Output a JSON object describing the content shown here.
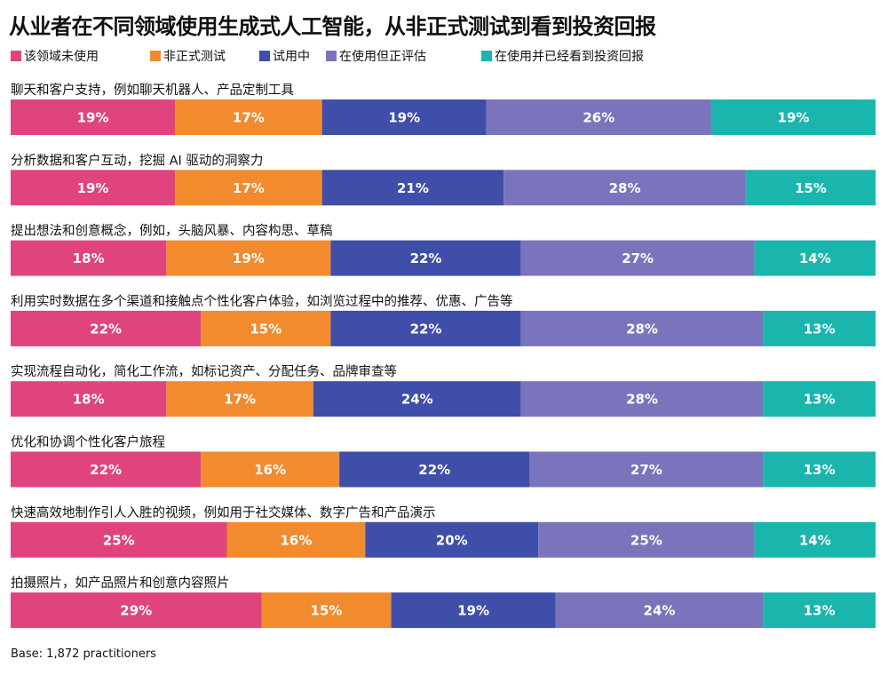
{
  "chart_data": {
    "type": "bar",
    "orientation": "horizontal",
    "stacked": true,
    "title": "从业者在不同领域使用生成式人工智能，从非正式测试到看到投资回报",
    "legend_position": "top",
    "series": [
      {
        "name": "该领域未使用",
        "color": "#e0447f",
        "values": [
          19,
          19,
          18,
          22,
          18,
          22,
          25,
          29
        ]
      },
      {
        "name": "非正式测试",
        "color": "#f28a2e",
        "values": [
          17,
          17,
          19,
          15,
          17,
          16,
          16,
          15
        ]
      },
      {
        "name": "试用中",
        "color": "#3f4ea8",
        "values": [
          19,
          21,
          22,
          22,
          24,
          22,
          20,
          19
        ]
      },
      {
        "name": "在使用但正评估",
        "color": "#7a74bd",
        "values": [
          26,
          28,
          27,
          28,
          28,
          27,
          25,
          24
        ]
      },
      {
        "name": "在使用并已经看到投资回报",
        "color": "#1ab6ae",
        "values": [
          19,
          15,
          14,
          13,
          13,
          13,
          14,
          13
        ]
      }
    ],
    "categories": [
      "聊天和客户支持，例如聊天机器人、产品定制工具",
      "分析数据和客户互动，挖掘 AI 驱动的洞察力",
      "提出想法和创意概念，例如，头脑风暴、内容构思、草稿",
      "利用实时数据在多个渠道和接触点个性化客户体验，如浏览过程中的推荐、优惠、广告等",
      "实现流程自动化，简化工作流，如标记资产、分配任务、品牌审查等",
      "优化和协调个性化客户旅程",
      "快速高效地制作引人入胜的视频，例如用于社交媒体、数字广告和产品演示",
      "拍摄照片，如产品照片和创意内容照片"
    ],
    "value_suffix": "%"
  },
  "footnote": "Base: 1,872 practitioners"
}
